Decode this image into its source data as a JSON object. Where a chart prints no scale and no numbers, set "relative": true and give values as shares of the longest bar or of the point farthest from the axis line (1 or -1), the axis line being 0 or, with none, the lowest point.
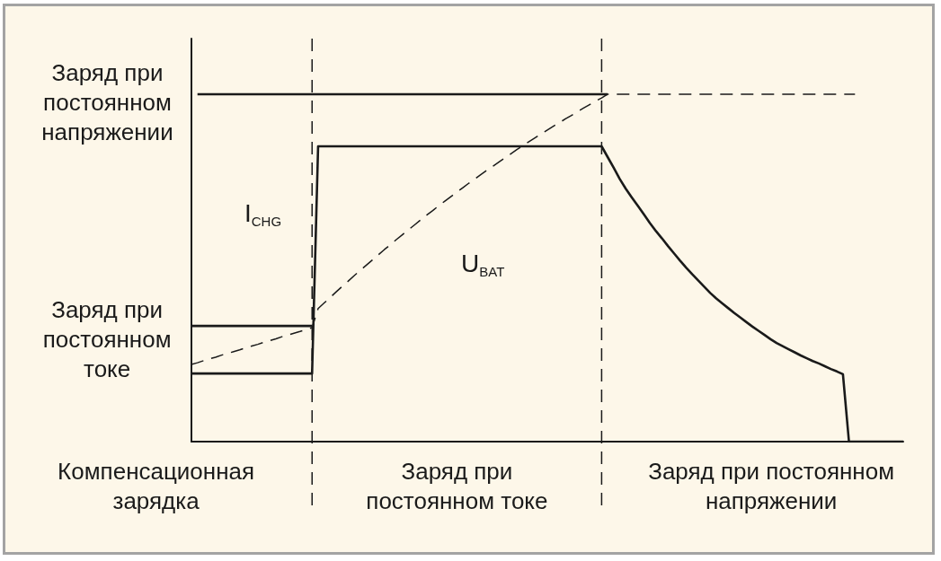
{
  "chart_data": {
    "type": "line",
    "relative": true,
    "marker": "none",
    "categories": [
      null,
      null,
      null,
      null,
      null,
      null,
      null,
      null,
      null,
      null,
      null,
      null,
      null,
      null,
      null,
      null,
      null,
      null,
      null,
      null,
      null,
      null,
      null,
      null,
      null,
      null,
      null,
      null,
      null,
      null,
      null,
      null,
      null,
      null,
      null,
      null,
      null,
      null,
      null,
      null,
      null,
      null,
      null,
      null,
      null,
      null,
      null,
      null,
      null,
      null,
      null,
      null,
      null,
      null,
      null,
      null,
      null,
      null,
      null,
      null,
      null,
      null,
      null,
      null,
      null,
      null,
      null,
      null,
      null,
      null,
      null,
      null,
      null,
      null,
      null,
      null,
      null,
      null,
      null,
      null,
      null,
      null,
      null,
      null,
      null,
      null,
      null,
      null,
      null,
      null,
      null,
      null,
      null,
      null,
      null,
      null,
      null,
      null,
      null,
      null,
      null,
      null,
      null,
      null,
      null,
      null,
      null,
      null,
      null,
      null,
      null,
      null,
      null,
      null,
      null,
      null,
      null,
      null,
      null
    ],
    "series": [
      {
        "name": "I$_{CHG}$",
        "color": "#1a1a1a",
        "values": [
          0.196,
          0.196,
          0.196,
          0.196,
          0.196,
          0.196,
          0.196,
          0.196,
          0.196,
          0.196,
          0.196,
          0.196,
          0.196,
          0.196,
          0.196,
          0.196,
          0.196,
          0.196,
          0.196,
          0.196,
          0.196,
          0.85,
          0.85,
          0.85,
          0.85,
          0.85,
          0.85,
          0.85,
          0.85,
          0.85,
          0.85,
          0.85,
          0.85,
          0.85,
          0.85,
          0.85,
          0.85,
          0.85,
          0.85,
          0.85,
          0.85,
          0.85,
          0.85,
          0.85,
          0.85,
          0.85,
          0.85,
          0.85,
          0.85,
          0.85,
          0.85,
          0.85,
          0.85,
          0.85,
          0.85,
          0.85,
          0.85,
          0.85,
          0.85,
          0.85,
          0.85,
          0.85,
          0.85,
          0.85,
          0.85,
          0.85,
          0.85,
          0.85,
          0.85,
          0.819,
          0.788,
          0.756,
          0.728,
          0.703,
          0.679,
          0.654,
          0.629,
          0.606,
          0.585,
          0.563,
          0.542,
          0.521,
          0.501,
          0.482,
          0.464,
          0.446,
          0.428,
          0.412,
          0.398,
          0.384,
          0.37,
          0.357,
          0.344,
          0.331,
          0.319,
          0.307,
          0.295,
          0.284,
          0.275,
          0.266,
          0.257,
          0.248,
          0.24,
          0.232,
          0.225,
          0.217,
          0.209,
          0.202,
          0.194,
          0,
          0,
          0,
          0,
          0,
          0,
          0,
          0,
          0,
          0
        ]
      },
      {
        "name": "U$_{BAT}$",
        "color": "#1a1a1a",
        "line_style": "dashed",
        "values": [
          0.222,
          0.227,
          0.233,
          0.238,
          0.243,
          0.249,
          0.254,
          0.259,
          0.264,
          0.27,
          0.275,
          0.28,
          0.286,
          0.291,
          0.296,
          0.302,
          0.307,
          0.312,
          0.317,
          0.323,
          0.328,
          0.383,
          0.399,
          0.415,
          0.431,
          0.447,
          0.462,
          0.478,
          0.493,
          0.508,
          0.523,
          0.538,
          0.553,
          0.567,
          0.582,
          0.596,
          0.61,
          0.624,
          0.638,
          0.652,
          0.665,
          0.679,
          0.692,
          0.705,
          0.718,
          0.731,
          0.744,
          0.756,
          0.769,
          0.781,
          0.793,
          0.805,
          0.817,
          0.829,
          0.841,
          0.852,
          0.864,
          0.875,
          0.886,
          0.897,
          0.908,
          0.918,
          0.929,
          0.939,
          0.95,
          0.96,
          0.97,
          0.98,
          0.989,
          1,
          1,
          1,
          1,
          1,
          1,
          1,
          1,
          1,
          1,
          1,
          1,
          1,
          1,
          1,
          1,
          1,
          1,
          1,
          1,
          1,
          1,
          1,
          1,
          1,
          1,
          1,
          1,
          1,
          1,
          1,
          1,
          1,
          1,
          1,
          1,
          1,
          1,
          1,
          1,
          1,
          1,
          null,
          null,
          null,
          null,
          null,
          null,
          null,
          null
        ]
      },
      {
        "color": "#1a1a1a",
        "values": [
          null,
          1,
          1,
          1,
          1,
          1,
          1,
          1,
          1,
          1,
          1,
          1,
          1,
          1,
          1,
          1,
          1,
          1,
          1,
          1,
          1,
          1,
          1,
          1,
          1,
          1,
          1,
          1,
          1,
          1,
          1,
          1,
          1,
          1,
          1,
          1,
          1,
          1,
          1,
          1,
          1,
          1,
          1,
          1,
          1,
          1,
          1,
          1,
          1,
          1,
          1,
          1,
          1,
          1,
          1,
          1,
          1,
          1,
          1,
          1,
          1,
          1,
          1,
          1,
          1,
          1,
          1,
          1,
          1,
          1,
          null,
          null,
          null,
          null,
          null,
          null,
          null,
          null,
          null,
          null,
          null,
          null,
          null,
          null,
          null,
          null,
          null,
          null,
          null,
          null,
          null,
          null,
          null,
          null,
          null,
          null,
          null,
          null,
          null,
          null,
          null,
          null,
          null,
          null,
          null,
          null,
          null,
          null,
          null,
          null,
          null,
          null,
          null,
          null,
          null,
          null,
          null,
          null,
          null
        ]
      },
      {
        "color": "#1a1a1a",
        "values": [
          0.333,
          0.333,
          0.333,
          0.333,
          0.333,
          0.333,
          0.333,
          0.333,
          0.333,
          0.333,
          0.333,
          0.333,
          0.333,
          0.333,
          0.333,
          0.333,
          0.333,
          0.333,
          0.333,
          0.333,
          0.333,
          null,
          null,
          null,
          null,
          null,
          null,
          null,
          null,
          null,
          null,
          null,
          null,
          null,
          null,
          null,
          null,
          null,
          null,
          null,
          null,
          null,
          null,
          null,
          null,
          null,
          null,
          null,
          null,
          null,
          null,
          null,
          null,
          null,
          null,
          null,
          null,
          null,
          null,
          null,
          null,
          null,
          null,
          null,
          null,
          null,
          null,
          null,
          null,
          null,
          null,
          null,
          null,
          null,
          null,
          null,
          null,
          null,
          null,
          null,
          null,
          null,
          null,
          null,
          null,
          null,
          null,
          null,
          null,
          null,
          null,
          null,
          null,
          null,
          null,
          null,
          null,
          null,
          null,
          null,
          null,
          null,
          null,
          null,
          null,
          null,
          null,
          null,
          null,
          null,
          null,
          null,
          null,
          null,
          null,
          null,
          null,
          null,
          null
        ]
      }
    ],
    "annotations": [
      "Заряд при\nпостоянном\nнапряжении",
      "Заряд при\nпостоянном\nтоке",
      "Компенсационная\nзарядка",
      "Заряд при\nпостоянном токе",
      "Заряд при постоянном\nнапряжении"
    ]
  }
}
